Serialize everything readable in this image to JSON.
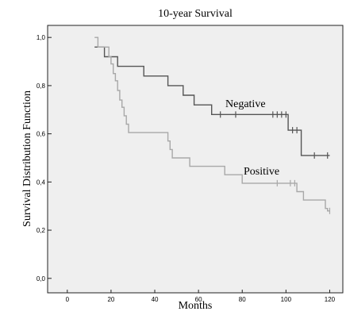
{
  "chart_data": {
    "type": "line",
    "step": true,
    "title": "10-year Survival",
    "xlabel": "Months",
    "ylabel": "Survival Distribution Function",
    "xlim": [
      -9,
      126
    ],
    "ylim": [
      -0.06,
      1.05
    ],
    "x_ticks": [
      0,
      20,
      40,
      60,
      80,
      100,
      120
    ],
    "x_tick_labels": [
      "0",
      "20",
      "40",
      "60",
      "80",
      "100",
      "120"
    ],
    "y_ticks": [
      0.0,
      0.2,
      0.4,
      0.6,
      0.8,
      1.0
    ],
    "y_tick_labels": [
      "0,0",
      "0,2",
      "0,4",
      "0,6",
      "0,8",
      "1,0"
    ],
    "grid": false,
    "series": [
      {
        "name": "Negative",
        "color": "#555555",
        "steps": [
          [
            12.5,
            0.96
          ],
          [
            17,
            0.92
          ],
          [
            23,
            0.88
          ],
          [
            35,
            0.84
          ],
          [
            46,
            0.8
          ],
          [
            53,
            0.76
          ],
          [
            58,
            0.72
          ],
          [
            66,
            0.68
          ],
          [
            101,
            0.615
          ],
          [
            107,
            0.51
          ],
          [
            120,
            0.51
          ]
        ],
        "censored": [
          [
            70,
            0.68
          ],
          [
            77,
            0.68
          ],
          [
            94,
            0.68
          ],
          [
            96,
            0.68
          ],
          [
            98,
            0.68
          ],
          [
            100,
            0.68
          ],
          [
            103,
            0.615
          ],
          [
            105,
            0.615
          ],
          [
            113,
            0.51
          ],
          [
            119,
            0.51
          ]
        ]
      },
      {
        "name": "Positive",
        "color": "#a8a8a8",
        "steps": [
          [
            12.5,
            1.0
          ],
          [
            14,
            0.96
          ],
          [
            19,
            0.92
          ],
          [
            20,
            0.89
          ],
          [
            21,
            0.85
          ],
          [
            22,
            0.82
          ],
          [
            23,
            0.78
          ],
          [
            24,
            0.74
          ],
          [
            25,
            0.71
          ],
          [
            26,
            0.675
          ],
          [
            27,
            0.64
          ],
          [
            28,
            0.605
          ],
          [
            46,
            0.57
          ],
          [
            47,
            0.535
          ],
          [
            48,
            0.5
          ],
          [
            56,
            0.465
          ],
          [
            72,
            0.43
          ],
          [
            80,
            0.395
          ],
          [
            105,
            0.36
          ],
          [
            108,
            0.325
          ],
          [
            118,
            0.29
          ],
          [
            119,
            0.28
          ],
          [
            120,
            0.28
          ]
        ],
        "censored": [
          [
            96,
            0.395
          ],
          [
            102,
            0.395
          ],
          [
            104,
            0.395
          ],
          [
            120,
            0.28
          ]
        ]
      }
    ]
  }
}
